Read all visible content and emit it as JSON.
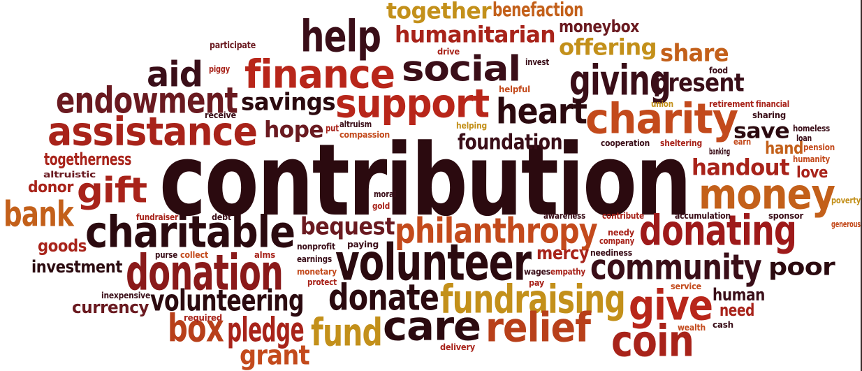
{
  "cloud": {
    "words": [
      {
        "text": "contribution",
        "color": "#2b0a0f"
      },
      {
        "text": "volunteer",
        "color": "#2b0a0f"
      },
      {
        "text": "donation",
        "color": "#8a1a1a"
      },
      {
        "text": "donating",
        "color": "#9e1a1a"
      },
      {
        "text": "charitable",
        "color": "#2b0a0f"
      },
      {
        "text": "assistance",
        "color": "#a8231a"
      },
      {
        "text": "philanthropy",
        "color": "#c34a1c"
      },
      {
        "text": "fundraising",
        "color": "#c3901a"
      },
      {
        "text": "relief",
        "color": "#b8401a"
      },
      {
        "text": "care",
        "color": "#2b0a0f"
      },
      {
        "text": "community",
        "color": "#3a0e18"
      },
      {
        "text": "money",
        "color": "#c3601a"
      },
      {
        "text": "giving",
        "color": "#3a0e18"
      },
      {
        "text": "social",
        "color": "#3a0e18"
      },
      {
        "text": "support",
        "color": "#b8261a"
      },
      {
        "text": "finance",
        "color": "#b8261a"
      },
      {
        "text": "charity",
        "color": "#c34a1c"
      },
      {
        "text": "endowment",
        "color": "#6a1a20"
      },
      {
        "text": "donate",
        "color": "#2b0a0f"
      },
      {
        "text": "give",
        "color": "#b8261a"
      },
      {
        "text": "coin",
        "color": "#a8231a"
      },
      {
        "text": "gift",
        "color": "#a8231a"
      },
      {
        "text": "help",
        "color": "#3a0e18"
      },
      {
        "text": "aid",
        "color": "#3a0e18"
      },
      {
        "text": "heart",
        "color": "#2b0a0f"
      },
      {
        "text": "bank",
        "color": "#c3601a"
      },
      {
        "text": "box",
        "color": "#b8401a"
      },
      {
        "text": "fund",
        "color": "#c3901a"
      },
      {
        "text": "pledge",
        "color": "#a8231a"
      },
      {
        "text": "grant",
        "color": "#c34a1c"
      },
      {
        "text": "volunteering",
        "color": "#2b0a0f"
      },
      {
        "text": "humanitarian",
        "color": "#a8231a"
      },
      {
        "text": "together",
        "color": "#c3901a"
      },
      {
        "text": "benefaction",
        "color": "#c3601a"
      },
      {
        "text": "moneybox",
        "color": "#6a1a20"
      },
      {
        "text": "offering",
        "color": "#c3901a"
      },
      {
        "text": "share",
        "color": "#c3601a"
      },
      {
        "text": "present",
        "color": "#3a0e18"
      },
      {
        "text": "savings",
        "color": "#2b0a0f"
      },
      {
        "text": "hope",
        "color": "#6a1a20"
      },
      {
        "text": "bequest",
        "color": "#6a1a20"
      },
      {
        "text": "mercy",
        "color": "#a8231a"
      },
      {
        "text": "poor",
        "color": "#2b0a0f"
      },
      {
        "text": "handout",
        "color": "#a8231a"
      },
      {
        "text": "save",
        "color": "#2b0a0f"
      },
      {
        "text": "hand",
        "color": "#c3601a"
      },
      {
        "text": "foundation",
        "color": "#3a0e18"
      },
      {
        "text": "investment",
        "color": "#2b0a0f"
      },
      {
        "text": "goods",
        "color": "#a8231a"
      },
      {
        "text": "togetherness",
        "color": "#a8231a"
      },
      {
        "text": "currency",
        "color": "#6a1a20"
      },
      {
        "text": "human",
        "color": "#3a0e18"
      },
      {
        "text": "need",
        "color": "#a8231a"
      },
      {
        "text": "love",
        "color": "#a8231a"
      },
      {
        "text": "donor",
        "color": "#a8231a"
      },
      {
        "text": "participate",
        "color": "#6a1a20"
      },
      {
        "text": "piggy",
        "color": "#a8231a"
      },
      {
        "text": "receive",
        "color": "#3a0e18"
      },
      {
        "text": "altruism",
        "color": "#3a0e18"
      },
      {
        "text": "compassion",
        "color": "#c34a1c"
      },
      {
        "text": "put",
        "color": "#a8231a"
      },
      {
        "text": "drive",
        "color": "#a8231a"
      },
      {
        "text": "invest",
        "color": "#3a0e18"
      },
      {
        "text": "helpful",
        "color": "#c34a1c"
      },
      {
        "text": "helping",
        "color": "#c3901a"
      },
      {
        "text": "food",
        "color": "#3a0e18"
      },
      {
        "text": "union",
        "color": "#c3901a"
      },
      {
        "text": "retirement",
        "color": "#a8231a"
      },
      {
        "text": "financial",
        "color": "#a8231a"
      },
      {
        "text": "sharing",
        "color": "#3a0e18"
      },
      {
        "text": "homeless",
        "color": "#3a0e18"
      },
      {
        "text": "loan",
        "color": "#3a0e18"
      },
      {
        "text": "earn",
        "color": "#c34a1c"
      },
      {
        "text": "pension",
        "color": "#c34a1c"
      },
      {
        "text": "banking",
        "color": "#3a0e18"
      },
      {
        "text": "humanity",
        "color": "#c34a1c"
      },
      {
        "text": "cooperation",
        "color": "#3a0e18"
      },
      {
        "text": "sheltering",
        "color": "#a8231a"
      },
      {
        "text": "altruistic",
        "color": "#6a1a20"
      },
      {
        "text": "moral",
        "color": "#3a0e18"
      },
      {
        "text": "gold",
        "color": "#a8231a"
      },
      {
        "text": "fundraiser",
        "color": "#a8231a"
      },
      {
        "text": "debt",
        "color": "#3a0e18"
      },
      {
        "text": "awareness",
        "color": "#3a0e18"
      },
      {
        "text": "contribute",
        "color": "#a8231a"
      },
      {
        "text": "accumulation",
        "color": "#3a0e18"
      },
      {
        "text": "sponsor",
        "color": "#3a0e18"
      },
      {
        "text": "poverty",
        "color": "#c3901a"
      },
      {
        "text": "generous",
        "color": "#c34a1c"
      },
      {
        "text": "needy",
        "color": "#a8231a"
      },
      {
        "text": "company",
        "color": "#a8231a"
      },
      {
        "text": "neediness",
        "color": "#3a0e18"
      },
      {
        "text": "purse",
        "color": "#3a0e18"
      },
      {
        "text": "collect",
        "color": "#c34a1c"
      },
      {
        "text": "alms",
        "color": "#a8231a"
      },
      {
        "text": "nonprofit",
        "color": "#3a0e18"
      },
      {
        "text": "paying",
        "color": "#3a0e18"
      },
      {
        "text": "earnings",
        "color": "#3a0e18"
      },
      {
        "text": "monetary",
        "color": "#c34a1c"
      },
      {
        "text": "protect",
        "color": "#a8231a"
      },
      {
        "text": "wages",
        "color": "#3a0e18"
      },
      {
        "text": "empathy",
        "color": "#a8231a"
      },
      {
        "text": "pay",
        "color": "#a8231a"
      },
      {
        "text": "inexpensive",
        "color": "#3a0e18"
      },
      {
        "text": "required",
        "color": "#a8231a"
      },
      {
        "text": "service",
        "color": "#c34a1c"
      },
      {
        "text": "wealth",
        "color": "#c34a1c"
      },
      {
        "text": "cash",
        "color": "#3a0e18"
      },
      {
        "text": "delivery",
        "color": "#a8231a"
      }
    ]
  }
}
